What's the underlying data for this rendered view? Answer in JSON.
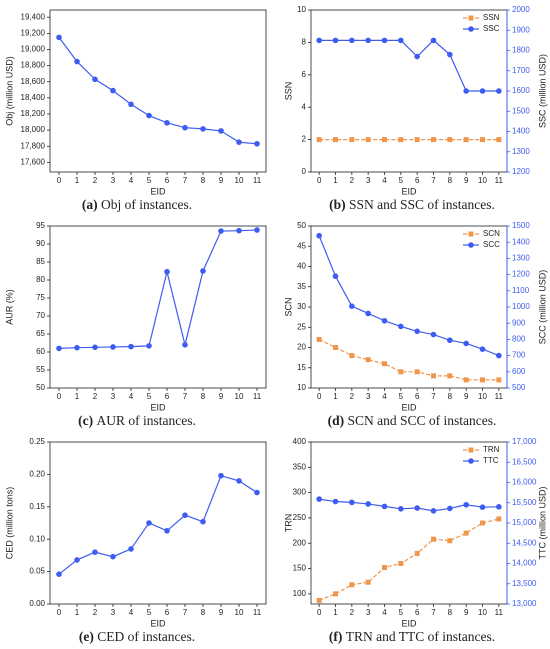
{
  "chart_data": [
    {
      "type": "line",
      "caption_label": "(a)",
      "caption": "Obj of instances.",
      "xlabel": "EID",
      "ylabel": "Obj (million USD)",
      "x": [
        0,
        1,
        2,
        3,
        4,
        5,
        6,
        7,
        8,
        9,
        10,
        11
      ],
      "xlim": [
        -0.5,
        11.5
      ],
      "xticks": [
        0,
        1,
        2,
        3,
        4,
        5,
        6,
        7,
        8,
        9,
        10,
        11
      ],
      "ylim": [
        17480,
        19490
      ],
      "yticks": [
        {
          "value": 17600,
          "label": "17,600"
        },
        {
          "value": 17800,
          "label": "17,800"
        },
        {
          "value": 18000,
          "label": "18,000"
        },
        {
          "value": 18200,
          "label": "18,200"
        },
        {
          "value": 18400,
          "label": "18,400"
        },
        {
          "value": 18600,
          "label": "18,600"
        },
        {
          "value": 18800,
          "label": "18,800"
        },
        {
          "value": 19000,
          "label": "19,000"
        },
        {
          "value": 19200,
          "label": "19,200"
        },
        {
          "value": 19400,
          "label": "19,400"
        }
      ],
      "values": [
        19150,
        18850,
        18630,
        18490,
        18320,
        18180,
        18090,
        18030,
        18015,
        17990,
        17850,
        17830
      ],
      "color": "#3f5cf2",
      "marker": "o",
      "linestyle": "solid"
    },
    {
      "type": "line",
      "caption_label": "(b)",
      "caption": "SSN and SSC of instances.",
      "xlabel": "EID",
      "ylabel": "SSN",
      "y2label": "SSC (million USD)",
      "x": [
        0,
        1,
        2,
        3,
        4,
        5,
        6,
        7,
        8,
        9,
        10,
        11
      ],
      "xlim": [
        -0.5,
        11.5
      ],
      "xticks": [
        0,
        1,
        2,
        3,
        4,
        5,
        6,
        7,
        8,
        9,
        10,
        11
      ],
      "ylim": [
        0,
        10
      ],
      "yticks": [
        0,
        2,
        4,
        6,
        8,
        10
      ],
      "y2lim": [
        1200,
        2000
      ],
      "y2ticks": [
        1200,
        1300,
        1400,
        1500,
        1600,
        1700,
        1800,
        1900,
        2000
      ],
      "legend": "upper right",
      "series": [
        {
          "name": "SSN",
          "color": "#f0964b",
          "marker": "s",
          "linestyle": "dashed",
          "values": [
            2,
            2,
            2,
            2,
            2,
            2,
            2,
            2,
            2,
            2,
            2,
            2
          ]
        },
        {
          "name": "SSC",
          "color": "#3f5cf2",
          "marker": "o",
          "linestyle": "solid",
          "axis": "y2",
          "values": [
            1850,
            1850,
            1850,
            1850,
            1850,
            1850,
            1770,
            1850,
            1780,
            1600,
            1600,
            1600
          ]
        }
      ]
    },
    {
      "type": "line",
      "caption_label": "(c)",
      "caption": "AUR of instances.",
      "xlabel": "EID",
      "ylabel": "AUR (%)",
      "x": [
        0,
        1,
        2,
        3,
        4,
        5,
        6,
        7,
        8,
        9,
        10,
        11
      ],
      "xlim": [
        -0.5,
        11.5
      ],
      "xticks": [
        0,
        1,
        2,
        3,
        4,
        5,
        6,
        7,
        8,
        9,
        10,
        11
      ],
      "ylim": [
        50,
        95
      ],
      "yticks": [
        50,
        55,
        60,
        65,
        70,
        75,
        80,
        85,
        90,
        95
      ],
      "values": [
        61,
        61.2,
        61.3,
        61.4,
        61.5,
        61.7,
        82.3,
        62.0,
        82.5,
        93.6,
        93.7,
        93.9
      ],
      "color": "#3f5cf2",
      "marker": "o",
      "linestyle": "solid"
    },
    {
      "type": "line",
      "caption_label": "(d)",
      "caption": "SCN and SCC of instances.",
      "xlabel": "EID",
      "ylabel": "SCN",
      "y2label": "SCC (million USD)",
      "x": [
        0,
        1,
        2,
        3,
        4,
        5,
        6,
        7,
        8,
        9,
        10,
        11
      ],
      "xlim": [
        -0.5,
        11.5
      ],
      "xticks": [
        0,
        1,
        2,
        3,
        4,
        5,
        6,
        7,
        8,
        9,
        10,
        11
      ],
      "ylim": [
        10,
        50
      ],
      "yticks": [
        10,
        15,
        20,
        25,
        30,
        35,
        40,
        45,
        50
      ],
      "y2lim": [
        500,
        1500
      ],
      "y2ticks": [
        500,
        600,
        700,
        800,
        900,
        1000,
        1100,
        1200,
        1300,
        1400,
        1500
      ],
      "legend": "upper right",
      "series": [
        {
          "name": "SCN",
          "color": "#f0964b",
          "marker": "s",
          "linestyle": "dashed",
          "values": [
            22,
            20,
            18,
            17,
            16,
            14,
            14,
            13,
            13,
            12,
            12,
            12
          ]
        },
        {
          "name": "SCC",
          "color": "#3f5cf2",
          "marker": "o",
          "linestyle": "solid",
          "axis": "y2",
          "values": [
            1440,
            1190,
            1005,
            960,
            915,
            880,
            850,
            830,
            795,
            775,
            740,
            700
          ]
        }
      ]
    },
    {
      "type": "line",
      "caption_label": "(e)",
      "caption": "CED of instances.",
      "xlabel": "EID",
      "ylabel": "CED (million tons)",
      "x": [
        0,
        1,
        2,
        3,
        4,
        5,
        6,
        7,
        8,
        9,
        10,
        11
      ],
      "xlim": [
        -0.5,
        11.5
      ],
      "xticks": [
        0,
        1,
        2,
        3,
        4,
        5,
        6,
        7,
        8,
        9,
        10,
        11
      ],
      "ylim": [
        0,
        0.25
      ],
      "yticks": [
        {
          "value": 0,
          "label": "0.00"
        },
        {
          "value": 0.05,
          "label": "0.05"
        },
        {
          "value": 0.1,
          "label": "0.10"
        },
        {
          "value": 0.15,
          "label": "0.15"
        },
        {
          "value": 0.2,
          "label": "0.20"
        },
        {
          "value": 0.25,
          "label": "0.25"
        }
      ],
      "values": [
        0.046,
        0.068,
        0.08,
        0.073,
        0.085,
        0.125,
        0.113,
        0.137,
        0.127,
        0.198,
        0.19,
        0.172
      ],
      "color": "#3f5cf2",
      "marker": "o",
      "linestyle": "solid"
    },
    {
      "type": "line",
      "caption_label": "(f)",
      "caption": "TRN and TTC of instances.",
      "xlabel": "EID",
      "ylabel": "TRN",
      "y2label": "TTC (million USD)",
      "x": [
        0,
        1,
        2,
        3,
        4,
        5,
        6,
        7,
        8,
        9,
        10,
        11
      ],
      "xlim": [
        -0.5,
        11.5
      ],
      "xticks": [
        0,
        1,
        2,
        3,
        4,
        5,
        6,
        7,
        8,
        9,
        10,
        11
      ],
      "ylim": [
        80,
        400
      ],
      "yticks": [
        100,
        150,
        200,
        250,
        300,
        350,
        400
      ],
      "y2lim": [
        13000,
        17000
      ],
      "y2ticks": [
        {
          "value": 13000,
          "label": "13,000"
        },
        {
          "value": 13500,
          "label": "13,500"
        },
        {
          "value": 14000,
          "label": "14,000"
        },
        {
          "value": 14500,
          "label": "14,500"
        },
        {
          "value": 15000,
          "label": "15,000"
        },
        {
          "value": 15500,
          "label": "15,500"
        },
        {
          "value": 16000,
          "label": "16,000"
        },
        {
          "value": 16500,
          "label": "16,500"
        },
        {
          "value": 17000,
          "label": "17,000"
        }
      ],
      "legend": "upper right",
      "series": [
        {
          "name": "TRN",
          "color": "#f0964b",
          "marker": "s",
          "linestyle": "dashed",
          "values": [
            87,
            100,
            118,
            123,
            152,
            160,
            180,
            208,
            205,
            220,
            240,
            248
          ]
        },
        {
          "name": "TTC",
          "color": "#3f5cf2",
          "marker": "o",
          "linestyle": "solid",
          "axis": "y2",
          "values": [
            15590,
            15530,
            15510,
            15470,
            15410,
            15350,
            15370,
            15300,
            15360,
            15450,
            15390,
            15400
          ]
        }
      ]
    }
  ]
}
